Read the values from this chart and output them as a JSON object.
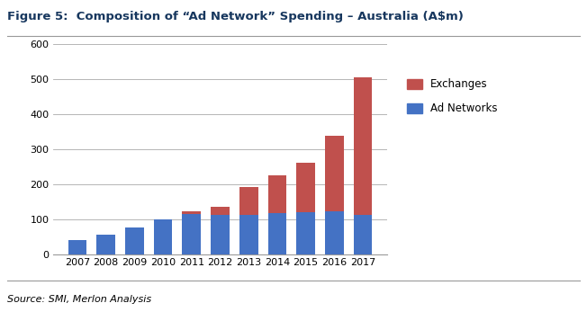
{
  "title": "Figure 5:  Composition of “Ad Network” Spending – Australia (A$m)",
  "years": [
    "2007",
    "2008",
    "2009",
    "2010",
    "2011",
    "2012",
    "2013",
    "2014",
    "2015",
    "2016",
    "2017"
  ],
  "ad_networks": [
    40,
    55,
    77,
    100,
    115,
    113,
    113,
    117,
    120,
    122,
    113
  ],
  "exchanges": [
    0,
    0,
    0,
    0,
    7,
    22,
    78,
    108,
    140,
    215,
    392
  ],
  "color_ad_networks": "#4472C4",
  "color_exchanges": "#C0504D",
  "ylim": [
    0,
    600
  ],
  "yticks": [
    0,
    100,
    200,
    300,
    400,
    500,
    600
  ],
  "legend_exchanges": "Exchanges",
  "legend_ad_networks": "Ad Networks",
  "source_text": "Source: SMI, Merlon Analysis",
  "title_color": "#17375E",
  "title_fontsize": 9.5,
  "source_fontsize": 8,
  "tick_fontsize": 8,
  "background_color": "#FFFFFF",
  "grid_color": "#AAAAAA"
}
